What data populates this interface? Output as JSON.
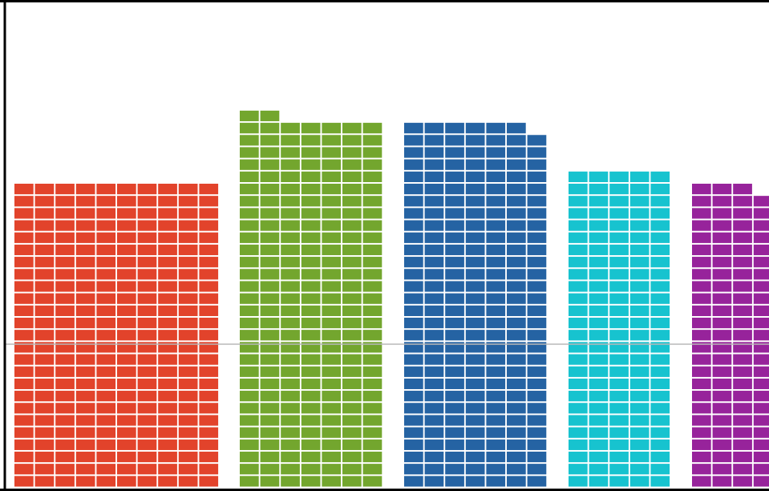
{
  "chart_data": {
    "type": "bar",
    "style": "waffle-unit-columns",
    "unit": "cells",
    "orientation": "vertical",
    "categories": [
      "",
      "",
      "",
      "",
      ""
    ],
    "values": [
      250,
      212,
      209,
      130,
      99
    ],
    "cells_per_row": [
      10,
      7,
      7,
      5,
      4
    ],
    "series": [
      {
        "name": "",
        "color": "#e2432b",
        "cells": 250
      },
      {
        "name": "",
        "color": "#73a62e",
        "cells": 212
      },
      {
        "name": "",
        "color": "#2563a3",
        "cells": 209
      },
      {
        "name": "",
        "color": "#17c3cf",
        "cells": 130
      },
      {
        "name": "",
        "color": "#97239b",
        "cells": 99
      }
    ],
    "reference_line": {
      "value": "",
      "color": "#b8b8b8"
    },
    "xlabel": "",
    "ylabel": "",
    "grid": false,
    "legend": "none",
    "title_visible": false
  }
}
